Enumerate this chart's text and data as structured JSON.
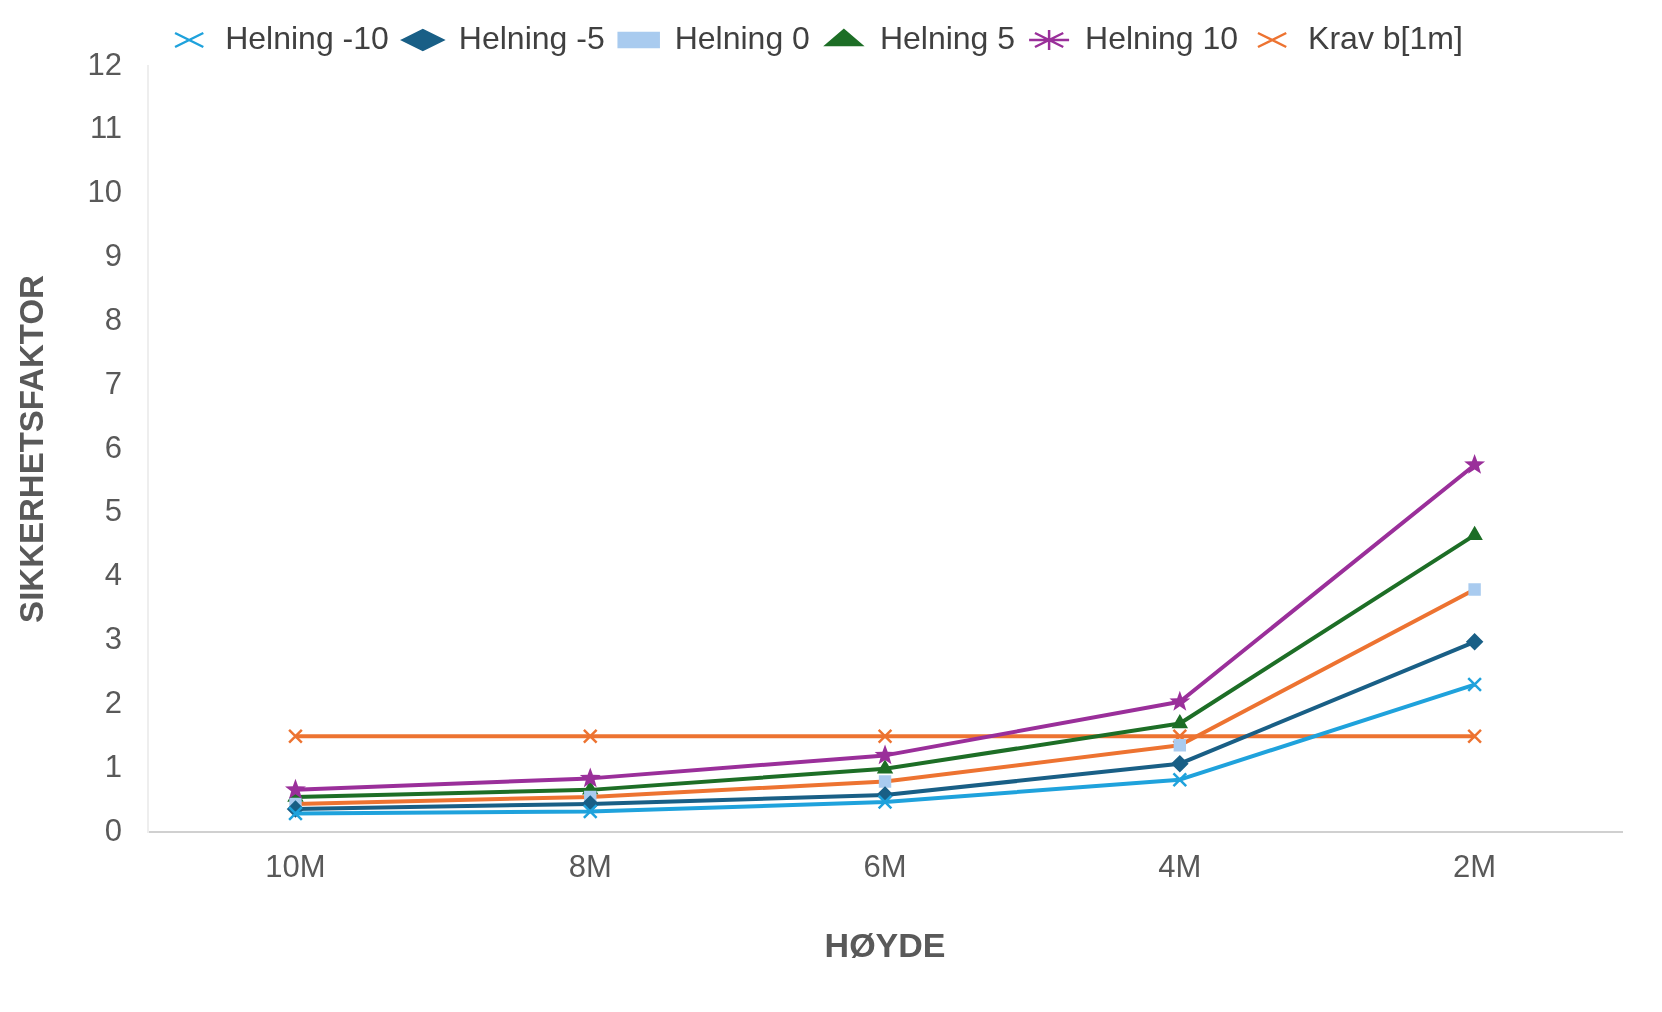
{
  "chart_data": {
    "type": "line",
    "xlabel": "HØYDE",
    "ylabel": "SIKKERHETSFAKTOR",
    "categories": [
      "10M",
      "8M",
      "6M",
      "4M",
      "2M"
    ],
    "series": [
      {
        "name": "Helning -10",
        "color": "#1fa2dc",
        "marker": "cross",
        "values": [
          0.29,
          0.32,
          0.47,
          0.82,
          2.31
        ]
      },
      {
        "name": "Helning -5",
        "color": "#195f86",
        "marker": "diamond",
        "values": [
          0.36,
          0.44,
          0.58,
          1.07,
          2.98
        ]
      },
      {
        "name": "Helning 0",
        "color": "#ed7331",
        "colors": [
          "#a9cbef",
          "#a9cbef",
          "#a9cbef",
          "#a9cbef",
          "#a9cbef"
        ],
        "marker": "square",
        "values": [
          0.44,
          0.55,
          0.79,
          1.36,
          3.8
        ]
      },
      {
        "name": "Helning 5",
        "color": "#1d6e26",
        "marker": "triangle",
        "values": [
          0.55,
          0.66,
          0.99,
          1.7,
          4.65
        ]
      },
      {
        "name": "Helning 10",
        "color": "#9a2f9a",
        "marker": "star",
        "values": [
          0.66,
          0.84,
          1.2,
          2.04,
          5.75
        ]
      },
      {
        "name": "Krav b[1m]",
        "color": "#ed7331",
        "marker": "cross",
        "values": [
          1.5,
          1.5,
          1.5,
          1.5,
          1.5
        ]
      }
    ],
    "ylim": [
      0,
      12
    ],
    "yticks": [
      0,
      1,
      2,
      3,
      4,
      5,
      6,
      7,
      8,
      9,
      10,
      11,
      12
    ],
    "grid": false,
    "legend": "top",
    "line_style": "solid"
  }
}
